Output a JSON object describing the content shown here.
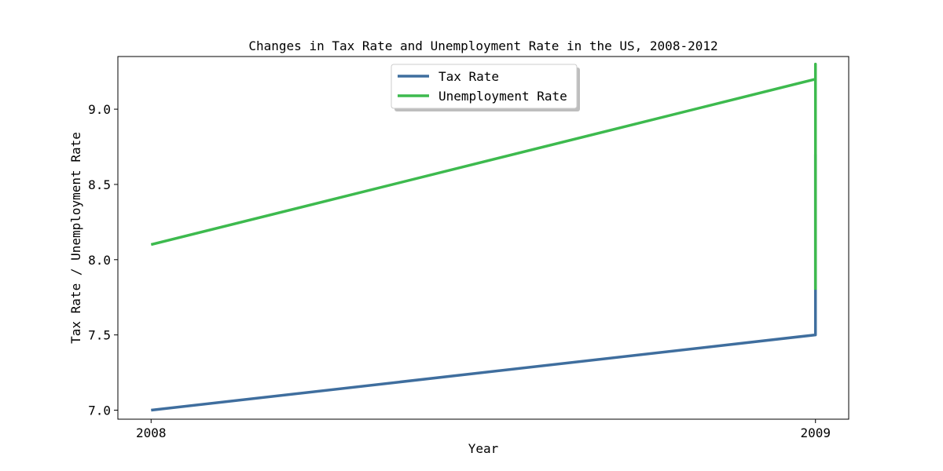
{
  "chart_data": {
    "type": "line",
    "title": "Changes in Tax Rate and Unemployment Rate in the US, 2008-2012",
    "xlabel": "Year",
    "ylabel": "Tax Rate / Unemployment Rate",
    "x_ticks": [
      "2008",
      "2009"
    ],
    "y_ticks": [
      "7.0",
      "7.5",
      "8.0",
      "8.5",
      "9.0"
    ],
    "y_tick_values": [
      7.0,
      7.5,
      8.0,
      8.5,
      9.0
    ],
    "xlim": [
      2007.95,
      2009.05
    ],
    "ylim": [
      6.94,
      9.35
    ],
    "grid": false,
    "legend_position": "upper-center",
    "series": [
      {
        "name": "Tax Rate",
        "color": "#3f6e9e",
        "points": [
          {
            "x": 2008,
            "y": 7.0
          },
          {
            "x": 2009,
            "y": 7.5
          },
          {
            "x": 2009,
            "y": 7.8
          },
          {
            "x": 2009,
            "y": 8.7
          }
        ]
      },
      {
        "name": "Unemployment Rate",
        "color": "#3dba4e",
        "points": [
          {
            "x": 2008,
            "y": 8.1
          },
          {
            "x": 2009,
            "y": 9.2
          },
          {
            "x": 2009,
            "y": 9.3
          },
          {
            "x": 2009,
            "y": 7.8
          }
        ]
      }
    ]
  }
}
